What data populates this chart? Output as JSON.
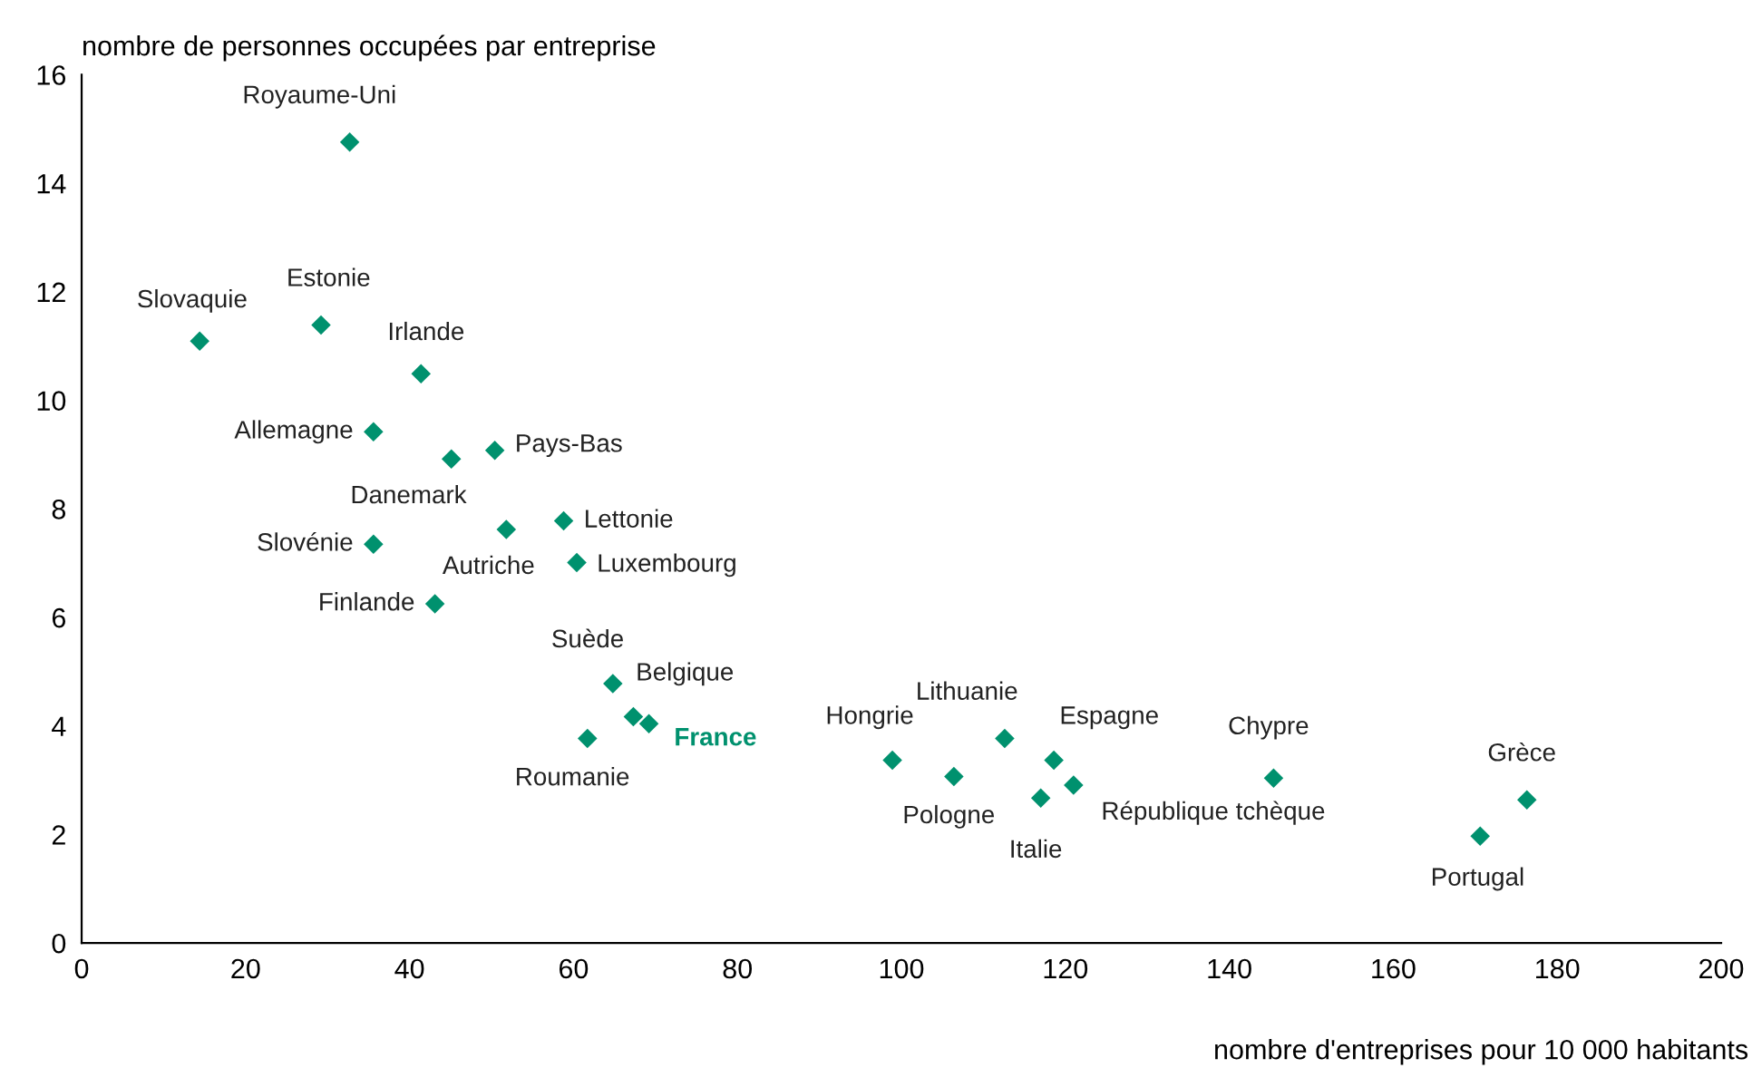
{
  "chart_data": {
    "type": "scatter",
    "xlabel": "nombre d'entreprises pour 10 000 habitants",
    "ylabel": "nombre de personnes occupées par entreprise",
    "series": [
      {
        "color": "#00916e",
        "marker": "diamond",
        "x": [
          32.7,
          14.4,
          29.2,
          41.4,
          35.6,
          45.1,
          50.4,
          58.8,
          51.8,
          35.6,
          60.4,
          43.1,
          64.8,
          67.3,
          69.2,
          61.7,
          98.9,
          106.4,
          112.6,
          118.6,
          117.0,
          121.0,
          145.4,
          176.3,
          170.6
        ],
        "values": [
          14.76,
          11.09,
          11.39,
          10.49,
          9.42,
          8.92,
          9.08,
          7.78,
          7.62,
          7.35,
          7.01,
          6.25,
          4.78,
          4.17,
          4.04,
          3.77,
          3.37,
          3.07,
          3.77,
          3.37,
          2.67,
          2.91,
          3.04,
          2.64,
          1.97
        ]
      }
    ],
    "annotations": [
      {
        "text": "Royaume-Uni",
        "x": 32.7,
        "y": 14.76
      },
      {
        "text": "Slovaquie",
        "x": 14.4,
        "y": 11.09
      },
      {
        "text": "Estonie",
        "x": 29.2,
        "y": 11.39
      },
      {
        "text": "Irlande",
        "x": 41.4,
        "y": 10.49
      },
      {
        "text": "Allemagne",
        "x": 35.6,
        "y": 9.42
      },
      {
        "text": "Danemark",
        "x": 45.1,
        "y": 8.92
      },
      {
        "text": "Pays-Bas",
        "x": 50.4,
        "y": 9.08
      },
      {
        "text": "Lettonie",
        "x": 58.8,
        "y": 7.78
      },
      {
        "text": "Autriche",
        "x": 51.8,
        "y": 7.62
      },
      {
        "text": "Slovénie",
        "x": 35.6,
        "y": 7.35
      },
      {
        "text": "Luxembourg",
        "x": 60.4,
        "y": 7.01
      },
      {
        "text": "Finlande",
        "x": 43.1,
        "y": 6.25
      },
      {
        "text": "Suède",
        "x": 64.8,
        "y": 4.78
      },
      {
        "text": "Belgique",
        "x": 67.3,
        "y": 4.17
      },
      {
        "text": "France",
        "x": 69.2,
        "y": 4.04
      },
      {
        "text": "Roumanie",
        "x": 61.7,
        "y": 3.77
      },
      {
        "text": "Hongrie",
        "x": 98.9,
        "y": 3.37
      },
      {
        "text": "Pologne",
        "x": 106.4,
        "y": 3.07
      },
      {
        "text": "Lithuanie",
        "x": 112.6,
        "y": 3.77
      },
      {
        "text": "Espagne",
        "x": 118.6,
        "y": 3.37
      },
      {
        "text": "Italie",
        "x": 117.0,
        "y": 2.67
      },
      {
        "text": "République tchèque",
        "x": 121.0,
        "y": 2.91
      },
      {
        "text": "Chypre",
        "x": 145.4,
        "y": 3.04
      },
      {
        "text": "Grèce",
        "x": 176.3,
        "y": 2.64
      },
      {
        "text": "Portugal",
        "x": 170.6,
        "y": 1.97
      }
    ],
    "xlim": [
      0,
      200
    ],
    "xticks": [
      0,
      20,
      40,
      60,
      80,
      100,
      120,
      140,
      160,
      180,
      200
    ],
    "ylim": [
      0,
      16
    ],
    "yticks": [
      0,
      2,
      4,
      6,
      8,
      10,
      12,
      14,
      16
    ],
    "grid": false,
    "legend": false
  }
}
